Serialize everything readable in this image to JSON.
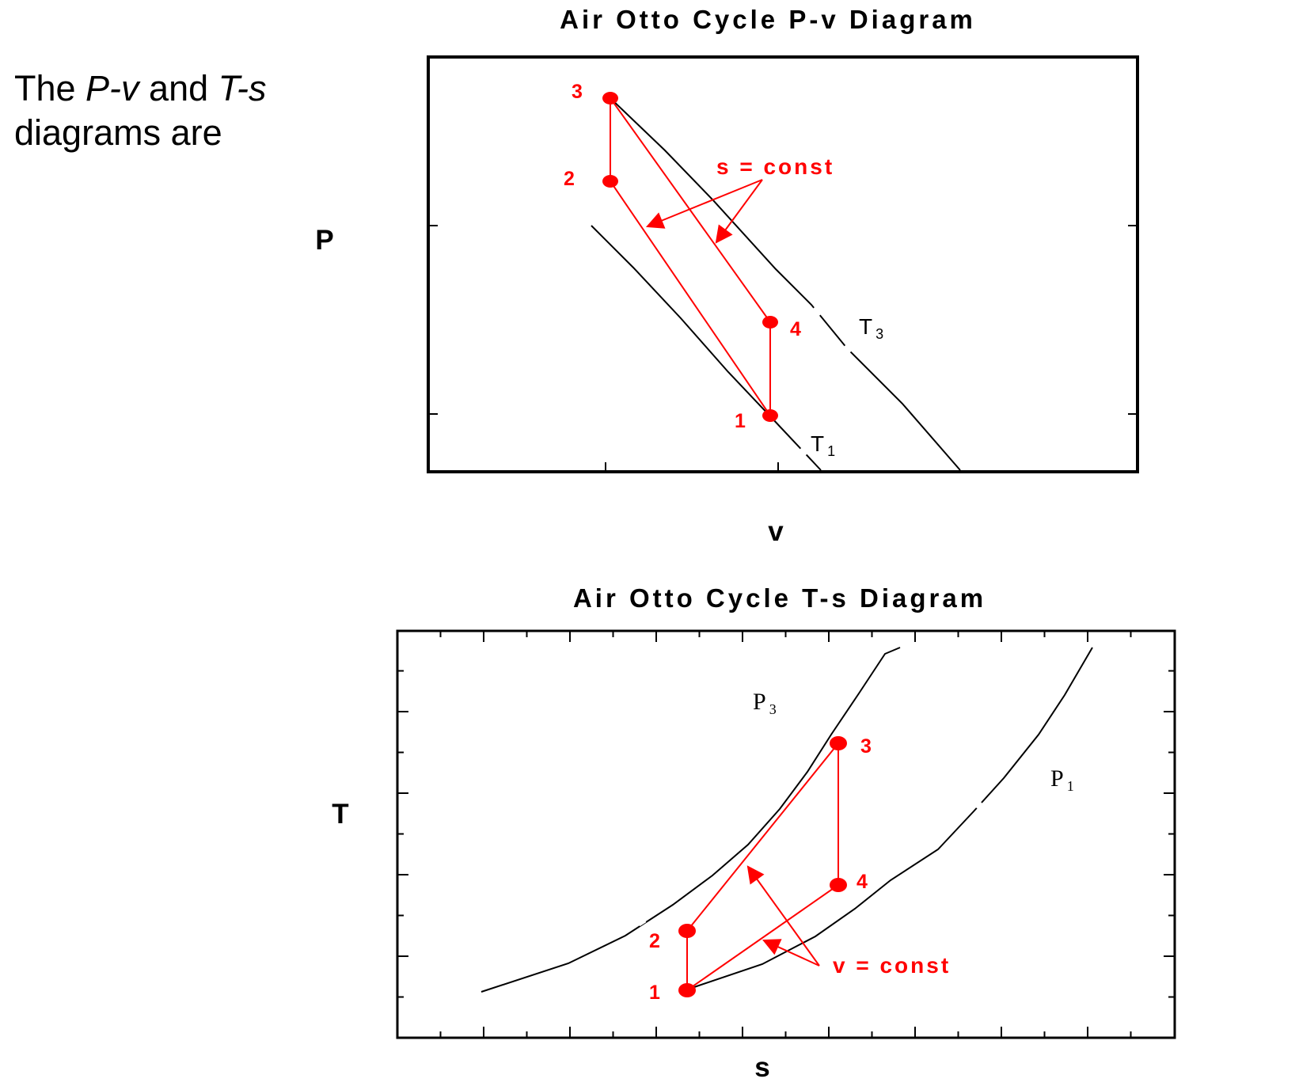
{
  "intro": {
    "part1": "The ",
    "pv": "P-v",
    "part2": " and ",
    "ts": "T-s",
    "part3": " diagrams are"
  },
  "colors": {
    "cycle": "#ff0000",
    "isoline": "#000000",
    "frame": "#000000"
  },
  "pv_diagram": {
    "title": "Air Otto Cycle P-v Diagram",
    "xlabel": "v",
    "ylabel": "P",
    "annotation": "s = const",
    "points": [
      {
        "id": "1",
        "label": "1"
      },
      {
        "id": "2",
        "label": "2"
      },
      {
        "id": "3",
        "label": "3"
      },
      {
        "id": "4",
        "label": "4"
      }
    ],
    "isolines": [
      {
        "symbol": "T",
        "sub": "3"
      },
      {
        "symbol": "T",
        "sub": "1"
      }
    ]
  },
  "ts_diagram": {
    "title": "Air Otto Cycle T-s Diagram",
    "xlabel": "s",
    "ylabel": "T",
    "annotation": "v = const",
    "points": [
      {
        "id": "1",
        "label": "1"
      },
      {
        "id": "2",
        "label": "2"
      },
      {
        "id": "3",
        "label": "3"
      },
      {
        "id": "4",
        "label": "4"
      }
    ],
    "isolines": [
      {
        "symbol": "P",
        "sub": "3"
      },
      {
        "symbol": "P",
        "sub": "1"
      }
    ]
  }
}
